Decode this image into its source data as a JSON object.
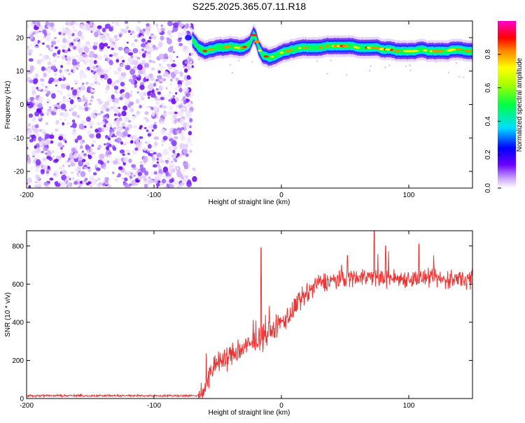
{
  "title": "S225.2025.365.07.11.R18",
  "chart_data": [
    {
      "type": "heatmap",
      "name": "spectrogram",
      "xlabel": "Height of straight line (km)",
      "ylabel": "Frequency (Hz)",
      "xlim": [
        -200,
        150
      ],
      "ylim": [
        -25,
        25
      ],
      "xticks": [
        -200,
        -100,
        0,
        100
      ],
      "yticks": [
        -20,
        -10,
        0,
        10,
        20
      ],
      "noise_region_x": [
        -200,
        -70
      ],
      "carrier_trace": {
        "x": [
          -70,
          -65,
          -60,
          -55,
          -50,
          -45,
          -40,
          -35,
          -30,
          -25,
          -22,
          -20,
          -18,
          -15,
          -10,
          -5,
          0,
          5,
          10,
          15,
          20,
          25,
          30,
          35,
          40,
          45,
          50,
          55,
          60,
          65,
          70,
          75,
          80,
          85,
          90,
          95,
          100,
          105,
          110,
          115,
          120,
          125,
          130,
          135,
          140,
          145,
          150
        ],
        "y": [
          19.5,
          17,
          16,
          16.5,
          17,
          17,
          17.5,
          17,
          17,
          18,
          21,
          20,
          17,
          15,
          14,
          14.5,
          15.5,
          16,
          16.5,
          17,
          17,
          17,
          17,
          17.5,
          17.5,
          17.5,
          17.5,
          17.5,
          17,
          17,
          17,
          17,
          16.5,
          16.5,
          16,
          16,
          16,
          16,
          16.5,
          16,
          16,
          16,
          16,
          16.5,
          16.5,
          16,
          16
        ]
      },
      "colorbar": {
        "label": "Normalized spectral amplitude",
        "ticks": [
          0.0,
          0.2,
          0.4,
          0.6,
          0.8
        ],
        "range": [
          0,
          1
        ]
      }
    },
    {
      "type": "line",
      "name": "snr",
      "xlabel": "Height of straight line (km)",
      "ylabel": "SNR (10 * v/v)",
      "xlim": [
        -200,
        150
      ],
      "ylim": [
        0,
        880
      ],
      "xticks": [
        -200,
        -100,
        0,
        100
      ],
      "yticks": [
        0,
        200,
        400,
        600,
        800
      ],
      "color": "#ee3333",
      "envelope": {
        "x": [
          -200,
          -65,
          -60,
          -55,
          -50,
          -45,
          -40,
          -35,
          -30,
          -25,
          -20,
          -15,
          -10,
          -5,
          0,
          5,
          10,
          15,
          20,
          25,
          30,
          40,
          50,
          60,
          70,
          80,
          90,
          100,
          110,
          120,
          130,
          140,
          150
        ],
        "y": [
          15,
          15,
          60,
          140,
          190,
          200,
          230,
          240,
          260,
          280,
          300,
          320,
          340,
          370,
          400,
          430,
          470,
          510,
          550,
          580,
          610,
          620,
          630,
          640,
          640,
          630,
          630,
          630,
          630,
          630,
          620,
          630,
          630
        ]
      },
      "spikes": [
        {
          "x": -16,
          "y": 790
        },
        {
          "x": 73,
          "y": 880
        },
        {
          "x": 52,
          "y": 750
        },
        {
          "x": 82,
          "y": 800
        },
        {
          "x": 108,
          "y": 810
        }
      ]
    }
  ]
}
